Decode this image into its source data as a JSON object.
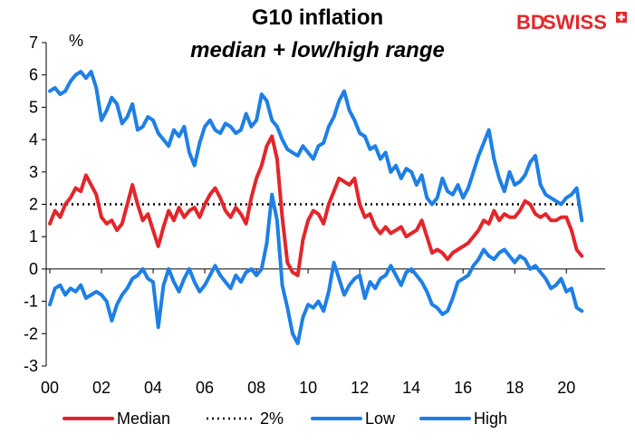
{
  "logo": {
    "text": "BDSWISS",
    "part1": "BD",
    "part2": "SWISS",
    "color": "#e3262b"
  },
  "chart_data": {
    "type": "line",
    "title": "G10 inflation",
    "subtitle": "median + low/high range",
    "ylabel": "%",
    "xlabel": "",
    "xlim": [
      2000.0,
      2021.5
    ],
    "ylim": [
      -3,
      7
    ],
    "xticks": [
      2000,
      2002,
      2004,
      2006,
      2008,
      2010,
      2012,
      2014,
      2016,
      2018,
      2020
    ],
    "xtick_labels": [
      "00",
      "02",
      "04",
      "06",
      "08",
      "10",
      "12",
      "14",
      "16",
      "18",
      "20"
    ],
    "yticks": [
      -3,
      -2,
      -1,
      0,
      1,
      2,
      3,
      4,
      5,
      6,
      7
    ],
    "ytick_labels": [
      "-3",
      "-2",
      "-1",
      "0",
      "1",
      "2",
      "3",
      "4",
      "5",
      "6",
      "7"
    ],
    "legend_position": "bottom",
    "grid": false,
    "series": [
      {
        "name": "Median",
        "color": "#e3262b",
        "style": "solid",
        "x": [
          2000.0,
          2000.2,
          2000.4,
          2000.6,
          2000.8,
          2001.0,
          2001.2,
          2001.4,
          2001.6,
          2001.8,
          2002.0,
          2002.2,
          2002.4,
          2002.6,
          2002.8,
          2003.0,
          2003.2,
          2003.4,
          2003.6,
          2003.8,
          2004.0,
          2004.2,
          2004.4,
          2004.6,
          2004.8,
          2005.0,
          2005.2,
          2005.4,
          2005.6,
          2005.8,
          2006.0,
          2006.2,
          2006.4,
          2006.6,
          2006.8,
          2007.0,
          2007.2,
          2007.4,
          2007.6,
          2007.8,
          2008.0,
          2008.2,
          2008.4,
          2008.6,
          2008.8,
          2009.0,
          2009.2,
          2009.4,
          2009.6,
          2009.8,
          2010.0,
          2010.2,
          2010.4,
          2010.6,
          2010.8,
          2011.0,
          2011.2,
          2011.4,
          2011.6,
          2011.8,
          2012.0,
          2012.2,
          2012.4,
          2012.6,
          2012.8,
          2013.0,
          2013.2,
          2013.4,
          2013.6,
          2013.8,
          2014.0,
          2014.2,
          2014.4,
          2014.6,
          2014.8,
          2015.0,
          2015.2,
          2015.4,
          2015.6,
          2015.8,
          2016.0,
          2016.2,
          2016.4,
          2016.6,
          2016.8,
          2017.0,
          2017.2,
          2017.4,
          2017.6,
          2017.8,
          2018.0,
          2018.2,
          2018.4,
          2018.6,
          2018.8,
          2019.0,
          2019.2,
          2019.4,
          2019.6,
          2019.8,
          2020.0,
          2020.2,
          2020.4,
          2020.6
        ],
        "y": [
          1.4,
          1.8,
          1.6,
          2.0,
          2.2,
          2.5,
          2.4,
          2.9,
          2.6,
          2.3,
          1.6,
          1.4,
          1.5,
          1.2,
          1.4,
          2.0,
          2.6,
          2.0,
          1.5,
          1.7,
          1.2,
          0.7,
          1.3,
          1.8,
          1.5,
          1.9,
          1.6,
          1.8,
          1.9,
          1.6,
          2.0,
          2.3,
          2.5,
          2.2,
          1.8,
          1.6,
          1.9,
          1.7,
          1.4,
          2.2,
          2.8,
          3.2,
          3.8,
          4.1,
          3.4,
          1.6,
          0.2,
          -0.1,
          -0.2,
          0.9,
          1.5,
          1.8,
          1.7,
          1.4,
          2.0,
          2.4,
          2.8,
          2.7,
          2.6,
          2.8,
          2.0,
          1.6,
          1.7,
          1.3,
          1.1,
          1.3,
          1.1,
          1.2,
          1.3,
          1.0,
          1.1,
          1.2,
          1.5,
          1.0,
          0.5,
          0.6,
          0.5,
          0.3,
          0.5,
          0.6,
          0.7,
          0.8,
          1.0,
          1.2,
          1.5,
          1.4,
          1.8,
          1.5,
          1.7,
          1.6,
          1.6,
          1.8,
          2.1,
          2.0,
          1.7,
          1.6,
          1.7,
          1.5,
          1.5,
          1.6,
          1.6,
          1.2,
          0.6,
          0.4
        ]
      },
      {
        "name": "2%",
        "color": "#000000",
        "style": "dotted",
        "x": [
          2000.0,
          2020.6
        ],
        "y": [
          2.0,
          2.0
        ]
      },
      {
        "name": "Low",
        "color": "#1e7fe6",
        "style": "solid",
        "x": [
          2000.0,
          2000.2,
          2000.4,
          2000.6,
          2000.8,
          2001.0,
          2001.2,
          2001.4,
          2001.6,
          2001.8,
          2002.0,
          2002.2,
          2002.4,
          2002.6,
          2002.8,
          2003.0,
          2003.2,
          2003.4,
          2003.6,
          2003.8,
          2004.0,
          2004.2,
          2004.4,
          2004.6,
          2004.8,
          2005.0,
          2005.2,
          2005.4,
          2005.6,
          2005.8,
          2006.0,
          2006.2,
          2006.4,
          2006.6,
          2006.8,
          2007.0,
          2007.2,
          2007.4,
          2007.6,
          2007.8,
          2008.0,
          2008.2,
          2008.4,
          2008.6,
          2008.8,
          2009.0,
          2009.2,
          2009.4,
          2009.6,
          2009.8,
          2010.0,
          2010.2,
          2010.4,
          2010.6,
          2010.8,
          2011.0,
          2011.2,
          2011.4,
          2011.6,
          2011.8,
          2012.0,
          2012.2,
          2012.4,
          2012.6,
          2012.8,
          2013.0,
          2013.2,
          2013.4,
          2013.6,
          2013.8,
          2014.0,
          2014.2,
          2014.4,
          2014.6,
          2014.8,
          2015.0,
          2015.2,
          2015.4,
          2015.6,
          2015.8,
          2016.0,
          2016.2,
          2016.4,
          2016.6,
          2016.8,
          2017.0,
          2017.2,
          2017.4,
          2017.6,
          2017.8,
          2018.0,
          2018.2,
          2018.4,
          2018.6,
          2018.8,
          2019.0,
          2019.2,
          2019.4,
          2019.6,
          2019.8,
          2020.0,
          2020.2,
          2020.4,
          2020.6
        ],
        "y": [
          -1.1,
          -0.6,
          -0.5,
          -0.8,
          -0.6,
          -0.7,
          -0.5,
          -0.9,
          -0.8,
          -0.7,
          -0.8,
          -1.0,
          -1.6,
          -1.1,
          -0.8,
          -0.6,
          -0.3,
          -0.2,
          0.0,
          -0.3,
          -0.4,
          -1.8,
          -0.5,
          0.0,
          -0.4,
          -0.7,
          -0.3,
          0.0,
          -0.4,
          -0.7,
          -0.5,
          -0.2,
          0.1,
          -0.2,
          -0.4,
          -0.6,
          -0.2,
          -0.4,
          -0.1,
          0.0,
          -0.2,
          0.0,
          0.8,
          2.3,
          1.5,
          -0.5,
          -1.2,
          -2.0,
          -2.3,
          -1.5,
          -1.1,
          -1.2,
          -1.0,
          -1.3,
          -0.7,
          0.2,
          -0.3,
          -0.8,
          -0.5,
          -0.3,
          -0.2,
          -0.9,
          -0.4,
          -0.6,
          -0.3,
          -0.2,
          0.1,
          -0.2,
          -0.5,
          -0.1,
          0.0,
          -0.2,
          -0.4,
          -0.7,
          -1.1,
          -1.2,
          -1.4,
          -1.3,
          -0.9,
          -0.4,
          -0.3,
          -0.2,
          0.1,
          0.3,
          0.6,
          0.4,
          0.3,
          0.5,
          0.6,
          0.4,
          0.2,
          0.4,
          0.3,
          0.0,
          0.1,
          -0.1,
          -0.3,
          -0.6,
          -0.5,
          -0.3,
          -0.7,
          -0.6,
          -1.2,
          -1.3
        ]
      },
      {
        "name": "High",
        "color": "#1e7fe6",
        "style": "solid",
        "x": [
          2000.0,
          2000.2,
          2000.4,
          2000.6,
          2000.8,
          2001.0,
          2001.2,
          2001.4,
          2001.6,
          2001.8,
          2002.0,
          2002.2,
          2002.4,
          2002.6,
          2002.8,
          2003.0,
          2003.2,
          2003.4,
          2003.6,
          2003.8,
          2004.0,
          2004.2,
          2004.4,
          2004.6,
          2004.8,
          2005.0,
          2005.2,
          2005.4,
          2005.6,
          2005.8,
          2006.0,
          2006.2,
          2006.4,
          2006.6,
          2006.8,
          2007.0,
          2007.2,
          2007.4,
          2007.6,
          2007.8,
          2008.0,
          2008.2,
          2008.4,
          2008.6,
          2008.8,
          2009.0,
          2009.2,
          2009.4,
          2009.6,
          2009.8,
          2010.0,
          2010.2,
          2010.4,
          2010.6,
          2010.8,
          2011.0,
          2011.2,
          2011.4,
          2011.6,
          2011.8,
          2012.0,
          2012.2,
          2012.4,
          2012.6,
          2012.8,
          2013.0,
          2013.2,
          2013.4,
          2013.6,
          2013.8,
          2014.0,
          2014.2,
          2014.4,
          2014.6,
          2014.8,
          2015.0,
          2015.2,
          2015.4,
          2015.6,
          2015.8,
          2016.0,
          2016.2,
          2016.4,
          2016.6,
          2016.8,
          2017.0,
          2017.2,
          2017.4,
          2017.6,
          2017.8,
          2018.0,
          2018.2,
          2018.4,
          2018.6,
          2018.8,
          2019.0,
          2019.2,
          2019.4,
          2019.6,
          2019.8,
          2020.0,
          2020.2,
          2020.4,
          2020.6
        ],
        "y": [
          5.5,
          5.6,
          5.4,
          5.5,
          5.8,
          6.0,
          6.1,
          5.9,
          6.1,
          5.6,
          4.6,
          4.9,
          5.3,
          5.1,
          4.5,
          4.7,
          5.1,
          4.3,
          4.4,
          4.7,
          4.6,
          4.2,
          4.0,
          3.8,
          4.3,
          4.1,
          4.4,
          3.6,
          3.2,
          3.9,
          4.4,
          4.6,
          4.3,
          4.2,
          4.5,
          4.4,
          4.2,
          4.3,
          4.8,
          4.4,
          4.6,
          5.4,
          5.2,
          4.6,
          4.4,
          4.0,
          3.7,
          3.6,
          3.5,
          3.8,
          3.6,
          3.4,
          3.8,
          3.9,
          4.4,
          4.7,
          5.2,
          5.5,
          4.9,
          4.6,
          4.2,
          4.1,
          3.7,
          3.8,
          3.4,
          3.6,
          3.0,
          3.2,
          2.8,
          3.1,
          3.0,
          2.6,
          2.9,
          2.2,
          2.0,
          2.2,
          2.8,
          2.4,
          2.3,
          2.6,
          2.2,
          2.5,
          3.0,
          3.5,
          3.9,
          4.3,
          3.4,
          2.8,
          2.4,
          3.0,
          2.6,
          2.7,
          2.9,
          3.3,
          3.5,
          2.6,
          2.3,
          2.2,
          2.1,
          2.0,
          2.2,
          2.3,
          2.5,
          1.5
        ]
      }
    ]
  }
}
